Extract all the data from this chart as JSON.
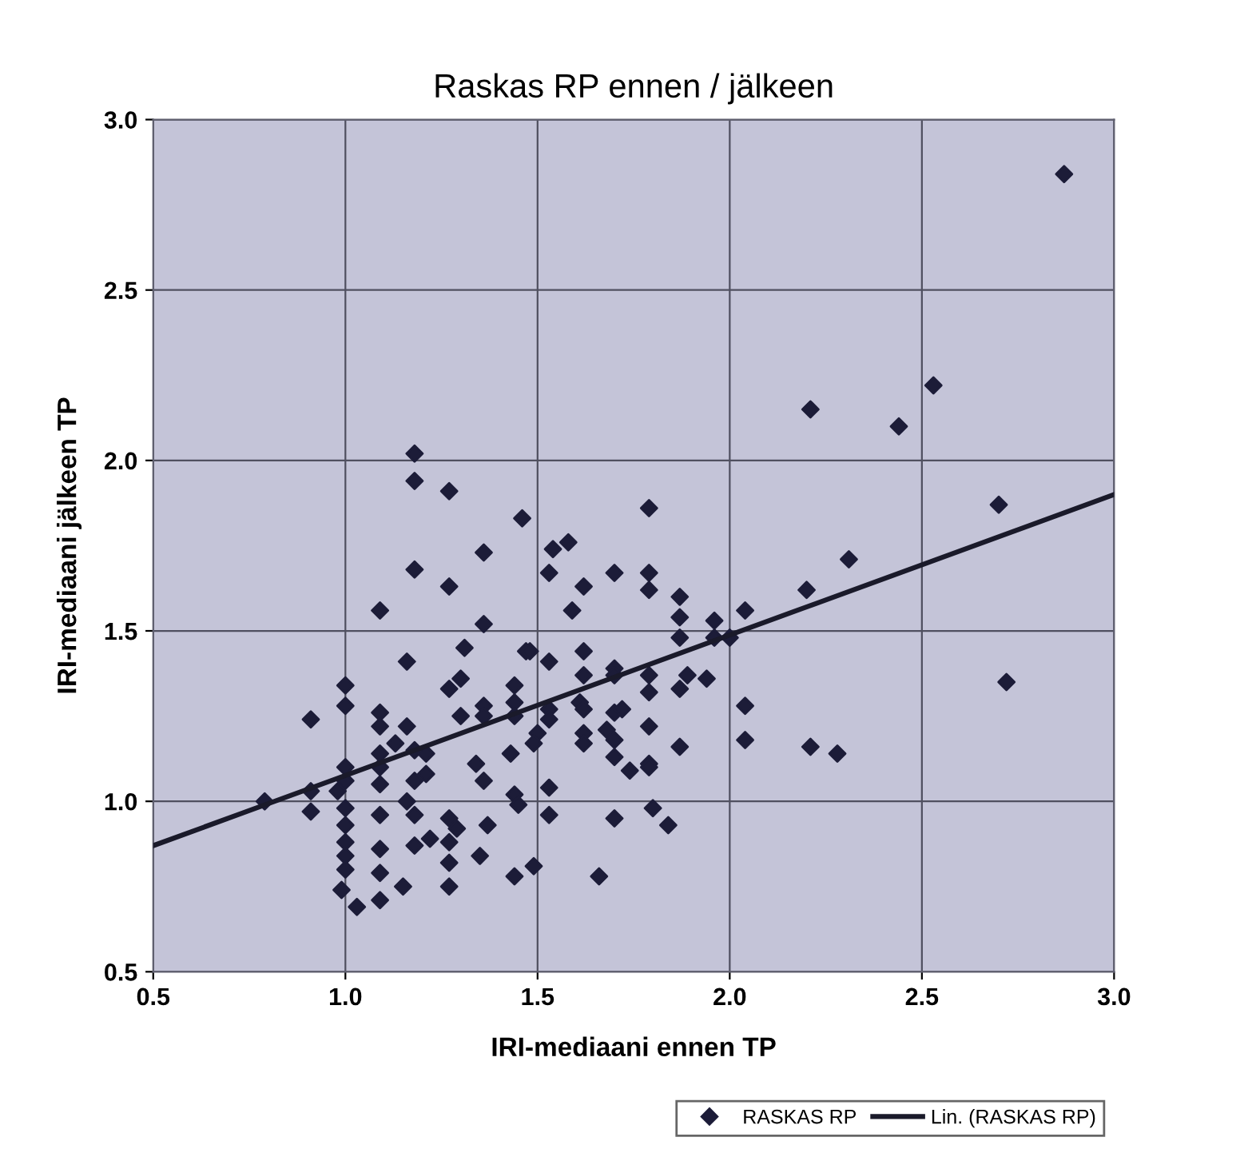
{
  "chart_data": {
    "type": "scatter",
    "title": "Raskas RP ennen / jälkeen",
    "xlabel": "IRI-mediaani ennen TP",
    "ylabel": "IRI-mediaani jälkeen TP",
    "xlim": [
      0.5,
      3.0
    ],
    "ylim": [
      0.5,
      3.0
    ],
    "xticks": [
      0.5,
      {
        "value": 1,
        "label": "1.0"
      },
      1.5,
      {
        "value": 2,
        "label": "2.0"
      },
      2.5,
      {
        "value": 3,
        "label": "3.0"
      }
    ],
    "yticks": [
      0.5,
      {
        "value": 1,
        "label": "1.0"
      },
      1.5,
      {
        "value": 2,
        "label": "2.0"
      },
      2.5,
      {
        "value": 3,
        "label": "3.0"
      }
    ],
    "grid": true,
    "legend": "bottom right",
    "series": [
      {
        "name": "RASKAS RP",
        "color": "#1c1c38",
        "marker": "diamond",
        "x": [
          1.18,
          1.18,
          1.27,
          1.46,
          1.36,
          1.18,
          1.27,
          1.09,
          1.36,
          1.31,
          1.47,
          1.16,
          1.3,
          1.27,
          1.44,
          1.0,
          1.0,
          1.36,
          1.36,
          1.44,
          1.44,
          1.3,
          0.91,
          1.09,
          1.09,
          1.16,
          1.13,
          1.09,
          1.18,
          1.21,
          1.43,
          1.34,
          1.36,
          1.09,
          1.0,
          1.0,
          0.98,
          1.21,
          1.18,
          1.09,
          0.91,
          0.79,
          0.91,
          1.0,
          1.16,
          1.18,
          1.44,
          1.45,
          1.0,
          1.09,
          1.27,
          1.29,
          1.37,
          1.22,
          1.27,
          1.18,
          1.09,
          1.0,
          1.0,
          1.0,
          1.09,
          1.27,
          1.35,
          1.44,
          1.15,
          1.27,
          0.99,
          1.09,
          1.03,
          1.79,
          1.54,
          1.58,
          1.53,
          1.7,
          1.79,
          1.79,
          1.62,
          1.59,
          1.87,
          1.87,
          1.96,
          2.04,
          1.87,
          1.96,
          2.0,
          1.48,
          1.53,
          1.62,
          1.62,
          1.7,
          1.7,
          1.79,
          1.79,
          1.87,
          1.89,
          1.94,
          2.04,
          2.04,
          1.61,
          1.62,
          1.53,
          1.53,
          1.7,
          1.72,
          1.79,
          1.5,
          1.49,
          1.62,
          1.62,
          1.68,
          1.7,
          1.7,
          1.87,
          1.74,
          1.79,
          1.79,
          1.53,
          1.53,
          1.7,
          1.8,
          1.84,
          1.49,
          1.66,
          2.87,
          2.21,
          2.53,
          2.44,
          2.7,
          2.31,
          2.2,
          2.72,
          2.21,
          2.28
        ],
        "values": [
          2.02,
          1.94,
          1.91,
          1.83,
          1.73,
          1.68,
          1.63,
          1.56,
          1.52,
          1.45,
          1.44,
          1.41,
          1.36,
          1.33,
          1.34,
          1.34,
          1.28,
          1.28,
          1.25,
          1.29,
          1.25,
          1.25,
          1.24,
          1.26,
          1.22,
          1.22,
          1.17,
          1.14,
          1.15,
          1.14,
          1.14,
          1.11,
          1.06,
          1.1,
          1.1,
          1.06,
          1.03,
          1.08,
          1.06,
          1.05,
          1.03,
          1.0,
          0.97,
          0.98,
          1.0,
          0.96,
          1.02,
          0.99,
          0.93,
          0.96,
          0.95,
          0.92,
          0.93,
          0.89,
          0.88,
          0.87,
          0.86,
          0.88,
          0.84,
          0.8,
          0.79,
          0.82,
          0.84,
          0.78,
          0.75,
          0.75,
          0.74,
          0.71,
          0.69,
          1.86,
          1.74,
          1.76,
          1.67,
          1.67,
          1.67,
          1.62,
          1.63,
          1.56,
          1.6,
          1.54,
          1.53,
          1.56,
          1.48,
          1.48,
          1.48,
          1.44,
          1.41,
          1.44,
          1.37,
          1.39,
          1.37,
          1.37,
          1.32,
          1.33,
          1.37,
          1.36,
          1.28,
          1.18,
          1.29,
          1.27,
          1.27,
          1.24,
          1.26,
          1.27,
          1.22,
          1.2,
          1.17,
          1.2,
          1.17,
          1.21,
          1.18,
          1.13,
          1.16,
          1.09,
          1.11,
          1.1,
          1.04,
          0.96,
          0.95,
          0.98,
          0.93,
          0.81,
          0.78,
          2.84,
          2.15,
          2.22,
          2.1,
          1.87,
          1.71,
          1.62,
          1.35,
          1.16,
          1.14
        ]
      },
      {
        "name": "Lin. (RASKAS RP)",
        "type": "line",
        "marker": "none",
        "color": "#1a1a2a",
        "x": [
          0.5,
          3.0
        ],
        "values": [
          0.87,
          1.9
        ]
      }
    ]
  }
}
